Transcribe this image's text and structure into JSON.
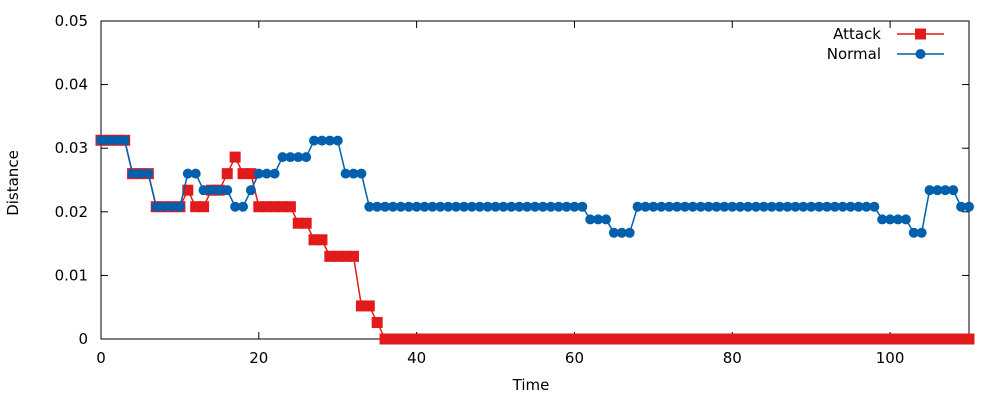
{
  "chart_data": {
    "type": "line",
    "title": "",
    "xlabel": "Time",
    "ylabel": "Distance",
    "xlim": [
      0,
      110
    ],
    "ylim": [
      0,
      0.05
    ],
    "xticks": [
      0,
      20,
      40,
      60,
      80,
      100
    ],
    "yticks": [
      0,
      0.01,
      0.02,
      0.03,
      0.04,
      0.05
    ],
    "xtick_labels": [
      "0",
      "20",
      "40",
      "60",
      "80",
      "100"
    ],
    "ytick_labels": [
      "0",
      "0.01",
      "0.02",
      "0.03",
      "0.04",
      "0.05"
    ],
    "grid": false,
    "legend_position": "top-right",
    "series": [
      {
        "name": "Attack",
        "color": "#e31a1c",
        "marker": "square",
        "x": [
          0,
          1,
          2,
          3,
          4,
          5,
          6,
          7,
          8,
          9,
          10,
          11,
          12,
          13,
          14,
          15,
          16,
          17,
          18,
          19,
          20,
          21,
          22,
          23,
          24,
          25,
          26,
          27,
          28,
          29,
          30,
          31,
          32,
          33,
          34,
          35,
          36,
          37,
          38,
          39,
          40,
          41,
          42,
          43,
          44,
          45,
          46,
          47,
          48,
          49,
          50,
          51,
          52,
          53,
          54,
          55,
          56,
          57,
          58,
          59,
          60,
          61,
          62,
          63,
          64,
          65,
          66,
          67,
          68,
          69,
          70,
          71,
          72,
          73,
          74,
          75,
          76,
          77,
          78,
          79,
          80,
          81,
          82,
          83,
          84,
          85,
          86,
          87,
          88,
          89,
          90,
          91,
          92,
          93,
          94,
          95,
          96,
          97,
          98,
          99,
          100,
          101,
          102,
          103,
          104,
          105,
          106,
          107,
          108,
          109,
          110
        ],
        "values": [
          0.03125,
          0.03125,
          0.03125,
          0.03125,
          0.026,
          0.026,
          0.026,
          0.0208,
          0.0208,
          0.0208,
          0.0208,
          0.0234,
          0.0208,
          0.0208,
          0.0234,
          0.0234,
          0.026,
          0.0286,
          0.026,
          0.026,
          0.0208,
          0.0208,
          0.0208,
          0.0208,
          0.0208,
          0.0182,
          0.0182,
          0.0156,
          0.0156,
          0.013,
          0.013,
          0.013,
          0.013,
          0.0052,
          0.0052,
          0.0026,
          0,
          0,
          0,
          0,
          0,
          0,
          0,
          0,
          0,
          0,
          0,
          0,
          0,
          0,
          0,
          0,
          0,
          0,
          0,
          0,
          0,
          0,
          0,
          0,
          0,
          0,
          0,
          0,
          0,
          0,
          0,
          0,
          0,
          0,
          0,
          0,
          0,
          0,
          0,
          0,
          0,
          0,
          0,
          0,
          0,
          0,
          0,
          0,
          0,
          0,
          0,
          0,
          0,
          0,
          0,
          0,
          0,
          0,
          0,
          0,
          0,
          0,
          0,
          0,
          0,
          0,
          0,
          0,
          0,
          0,
          0,
          0,
          0,
          0,
          0
        ]
      },
      {
        "name": "Normal",
        "color": "#0060ad",
        "marker": "circle",
        "x": [
          0,
          1,
          2,
          3,
          4,
          5,
          6,
          7,
          8,
          9,
          10,
          11,
          12,
          13,
          14,
          15,
          16,
          17,
          18,
          19,
          20,
          21,
          22,
          23,
          24,
          25,
          26,
          27,
          28,
          29,
          30,
          31,
          32,
          33,
          34,
          35,
          36,
          37,
          38,
          39,
          40,
          41,
          42,
          43,
          44,
          45,
          46,
          47,
          48,
          49,
          50,
          51,
          52,
          53,
          54,
          55,
          56,
          57,
          58,
          59,
          60,
          61,
          62,
          63,
          64,
          65,
          66,
          67,
          68,
          69,
          70,
          71,
          72,
          73,
          74,
          75,
          76,
          77,
          78,
          79,
          80,
          81,
          82,
          83,
          84,
          85,
          86,
          87,
          88,
          89,
          90,
          91,
          92,
          93,
          94,
          95,
          96,
          97,
          98,
          99,
          100,
          101,
          102,
          103,
          104,
          105,
          106,
          107,
          108,
          109,
          110
        ],
        "values": [
          0.03125,
          0.03125,
          0.03125,
          0.03125,
          0.026,
          0.026,
          0.026,
          0.0208,
          0.0208,
          0.0208,
          0.0208,
          0.026,
          0.026,
          0.0234,
          0.0234,
          0.0234,
          0.0234,
          0.0208,
          0.0208,
          0.0234,
          0.026,
          0.026,
          0.026,
          0.0286,
          0.0286,
          0.0286,
          0.0286,
          0.0312,
          0.0312,
          0.0312,
          0.0312,
          0.026,
          0.026,
          0.026,
          0.0208,
          0.0208,
          0.0208,
          0.0208,
          0.0208,
          0.0208,
          0.0208,
          0.0208,
          0.0208,
          0.0208,
          0.0208,
          0.0208,
          0.0208,
          0.0208,
          0.0208,
          0.0208,
          0.0208,
          0.0208,
          0.0208,
          0.0208,
          0.0208,
          0.0208,
          0.0208,
          0.0208,
          0.0208,
          0.0208,
          0.0208,
          0.0208,
          0.0188,
          0.0188,
          0.0188,
          0.0167,
          0.0167,
          0.0167,
          0.0208,
          0.0208,
          0.0208,
          0.0208,
          0.0208,
          0.0208,
          0.0208,
          0.0208,
          0.0208,
          0.0208,
          0.0208,
          0.0208,
          0.0208,
          0.0208,
          0.0208,
          0.0208,
          0.0208,
          0.0208,
          0.0208,
          0.0208,
          0.0208,
          0.0208,
          0.0208,
          0.0208,
          0.0208,
          0.0208,
          0.0208,
          0.0208,
          0.0208,
          0.0208,
          0.0208,
          0.0188,
          0.0188,
          0.0188,
          0.0188,
          0.0167,
          0.0167,
          0.0234,
          0.0234,
          0.0234,
          0.0234,
          0.0208,
          0.0208
        ]
      }
    ]
  }
}
